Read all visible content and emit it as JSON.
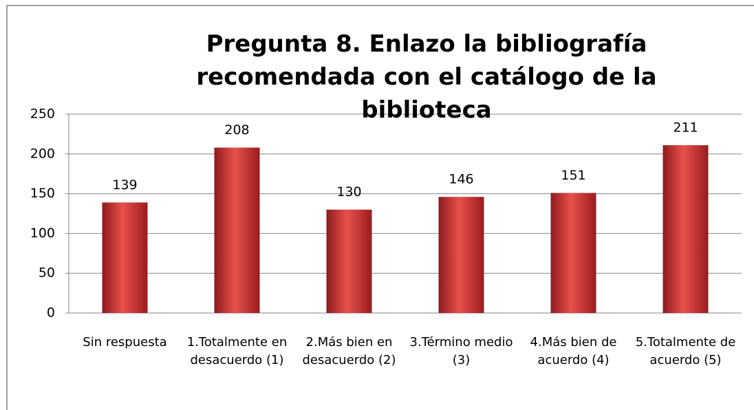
{
  "chart_data": {
    "type": "bar",
    "title": "Pregunta 8. Enlazo la bibliografía recomendada con el catálogo de la biblioteca",
    "categories": [
      "Sin respuesta",
      "1.Totalmente en desacuerdo (1)",
      "2.Más bien en desacuerdo (2)",
      "3.Término medio (3)",
      "4.Más bien de acuerdo (4)",
      "5.Totalmente de acuerdo (5)"
    ],
    "values": [
      139,
      208,
      130,
      146,
      151,
      211
    ],
    "color": "#c0282a",
    "ylim": [
      0,
      250
    ],
    "yticks": [
      0,
      50,
      100,
      150,
      200,
      250
    ],
    "grid": true
  }
}
